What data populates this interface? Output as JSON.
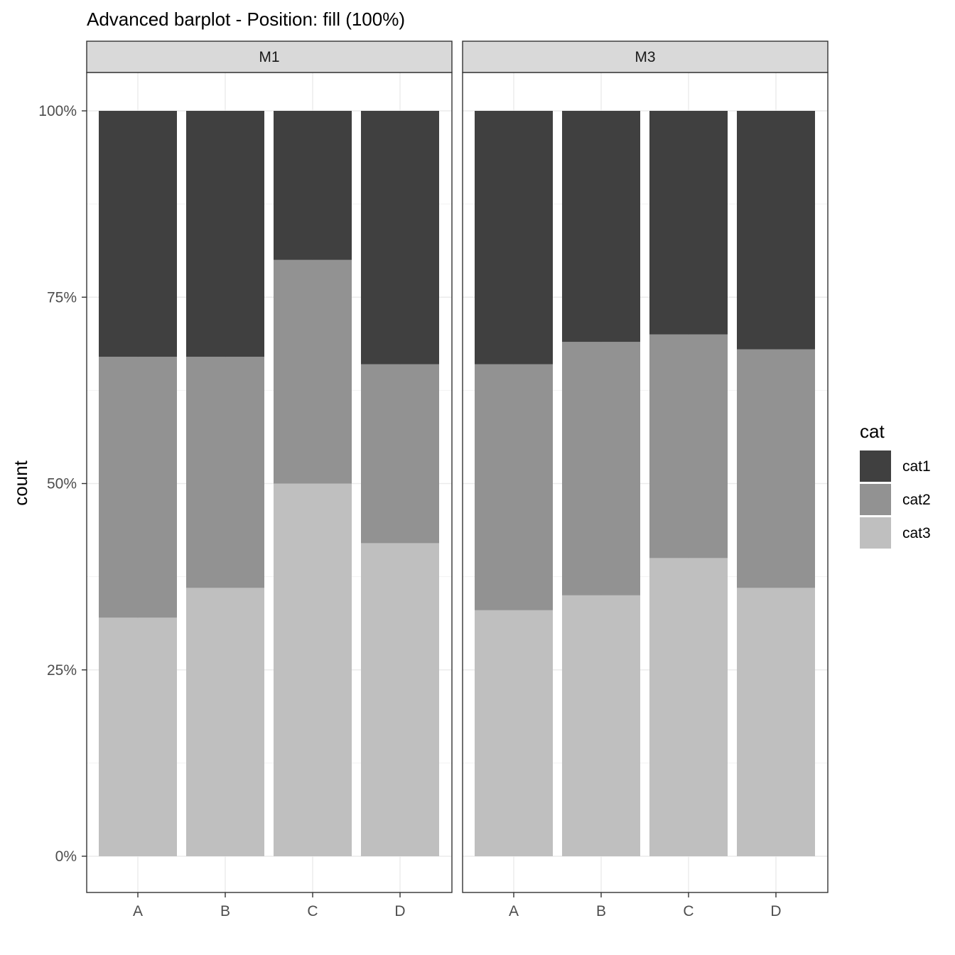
{
  "chart_data": {
    "type": "bar",
    "stacking": "fill",
    "title": "Advanced barplot - Position: fill (100%)",
    "xlabel": "",
    "ylabel": "count",
    "ylim": [
      0,
      1
    ],
    "y_ticks": [
      0,
      0.25,
      0.5,
      0.75,
      1.0
    ],
    "y_tick_labels": [
      "0%",
      "25%",
      "50%",
      "75%",
      "100%"
    ],
    "categories": [
      "A",
      "B",
      "C",
      "D"
    ],
    "grid": true,
    "legend": {
      "title": "cat",
      "position": "right",
      "entries": [
        "cat1",
        "cat2",
        "cat3"
      ]
    },
    "colors": {
      "cat1": "#404040",
      "cat2": "#929292",
      "cat3": "#bfbfbf"
    },
    "panels": [
      {
        "label": "M1",
        "series": [
          {
            "name": "cat1",
            "values": [
              0.33,
              0.33,
              0.2,
              0.34
            ]
          },
          {
            "name": "cat2",
            "values": [
              0.35,
              0.31,
              0.3,
              0.24
            ]
          },
          {
            "name": "cat3",
            "values": [
              0.32,
              0.36,
              0.5,
              0.42
            ]
          }
        ]
      },
      {
        "label": "M3",
        "series": [
          {
            "name": "cat1",
            "values": [
              0.34,
              0.31,
              0.3,
              0.32
            ]
          },
          {
            "name": "cat2",
            "values": [
              0.33,
              0.34,
              0.3,
              0.32
            ]
          },
          {
            "name": "cat3",
            "values": [
              0.33,
              0.35,
              0.4,
              0.36
            ]
          }
        ]
      }
    ]
  }
}
